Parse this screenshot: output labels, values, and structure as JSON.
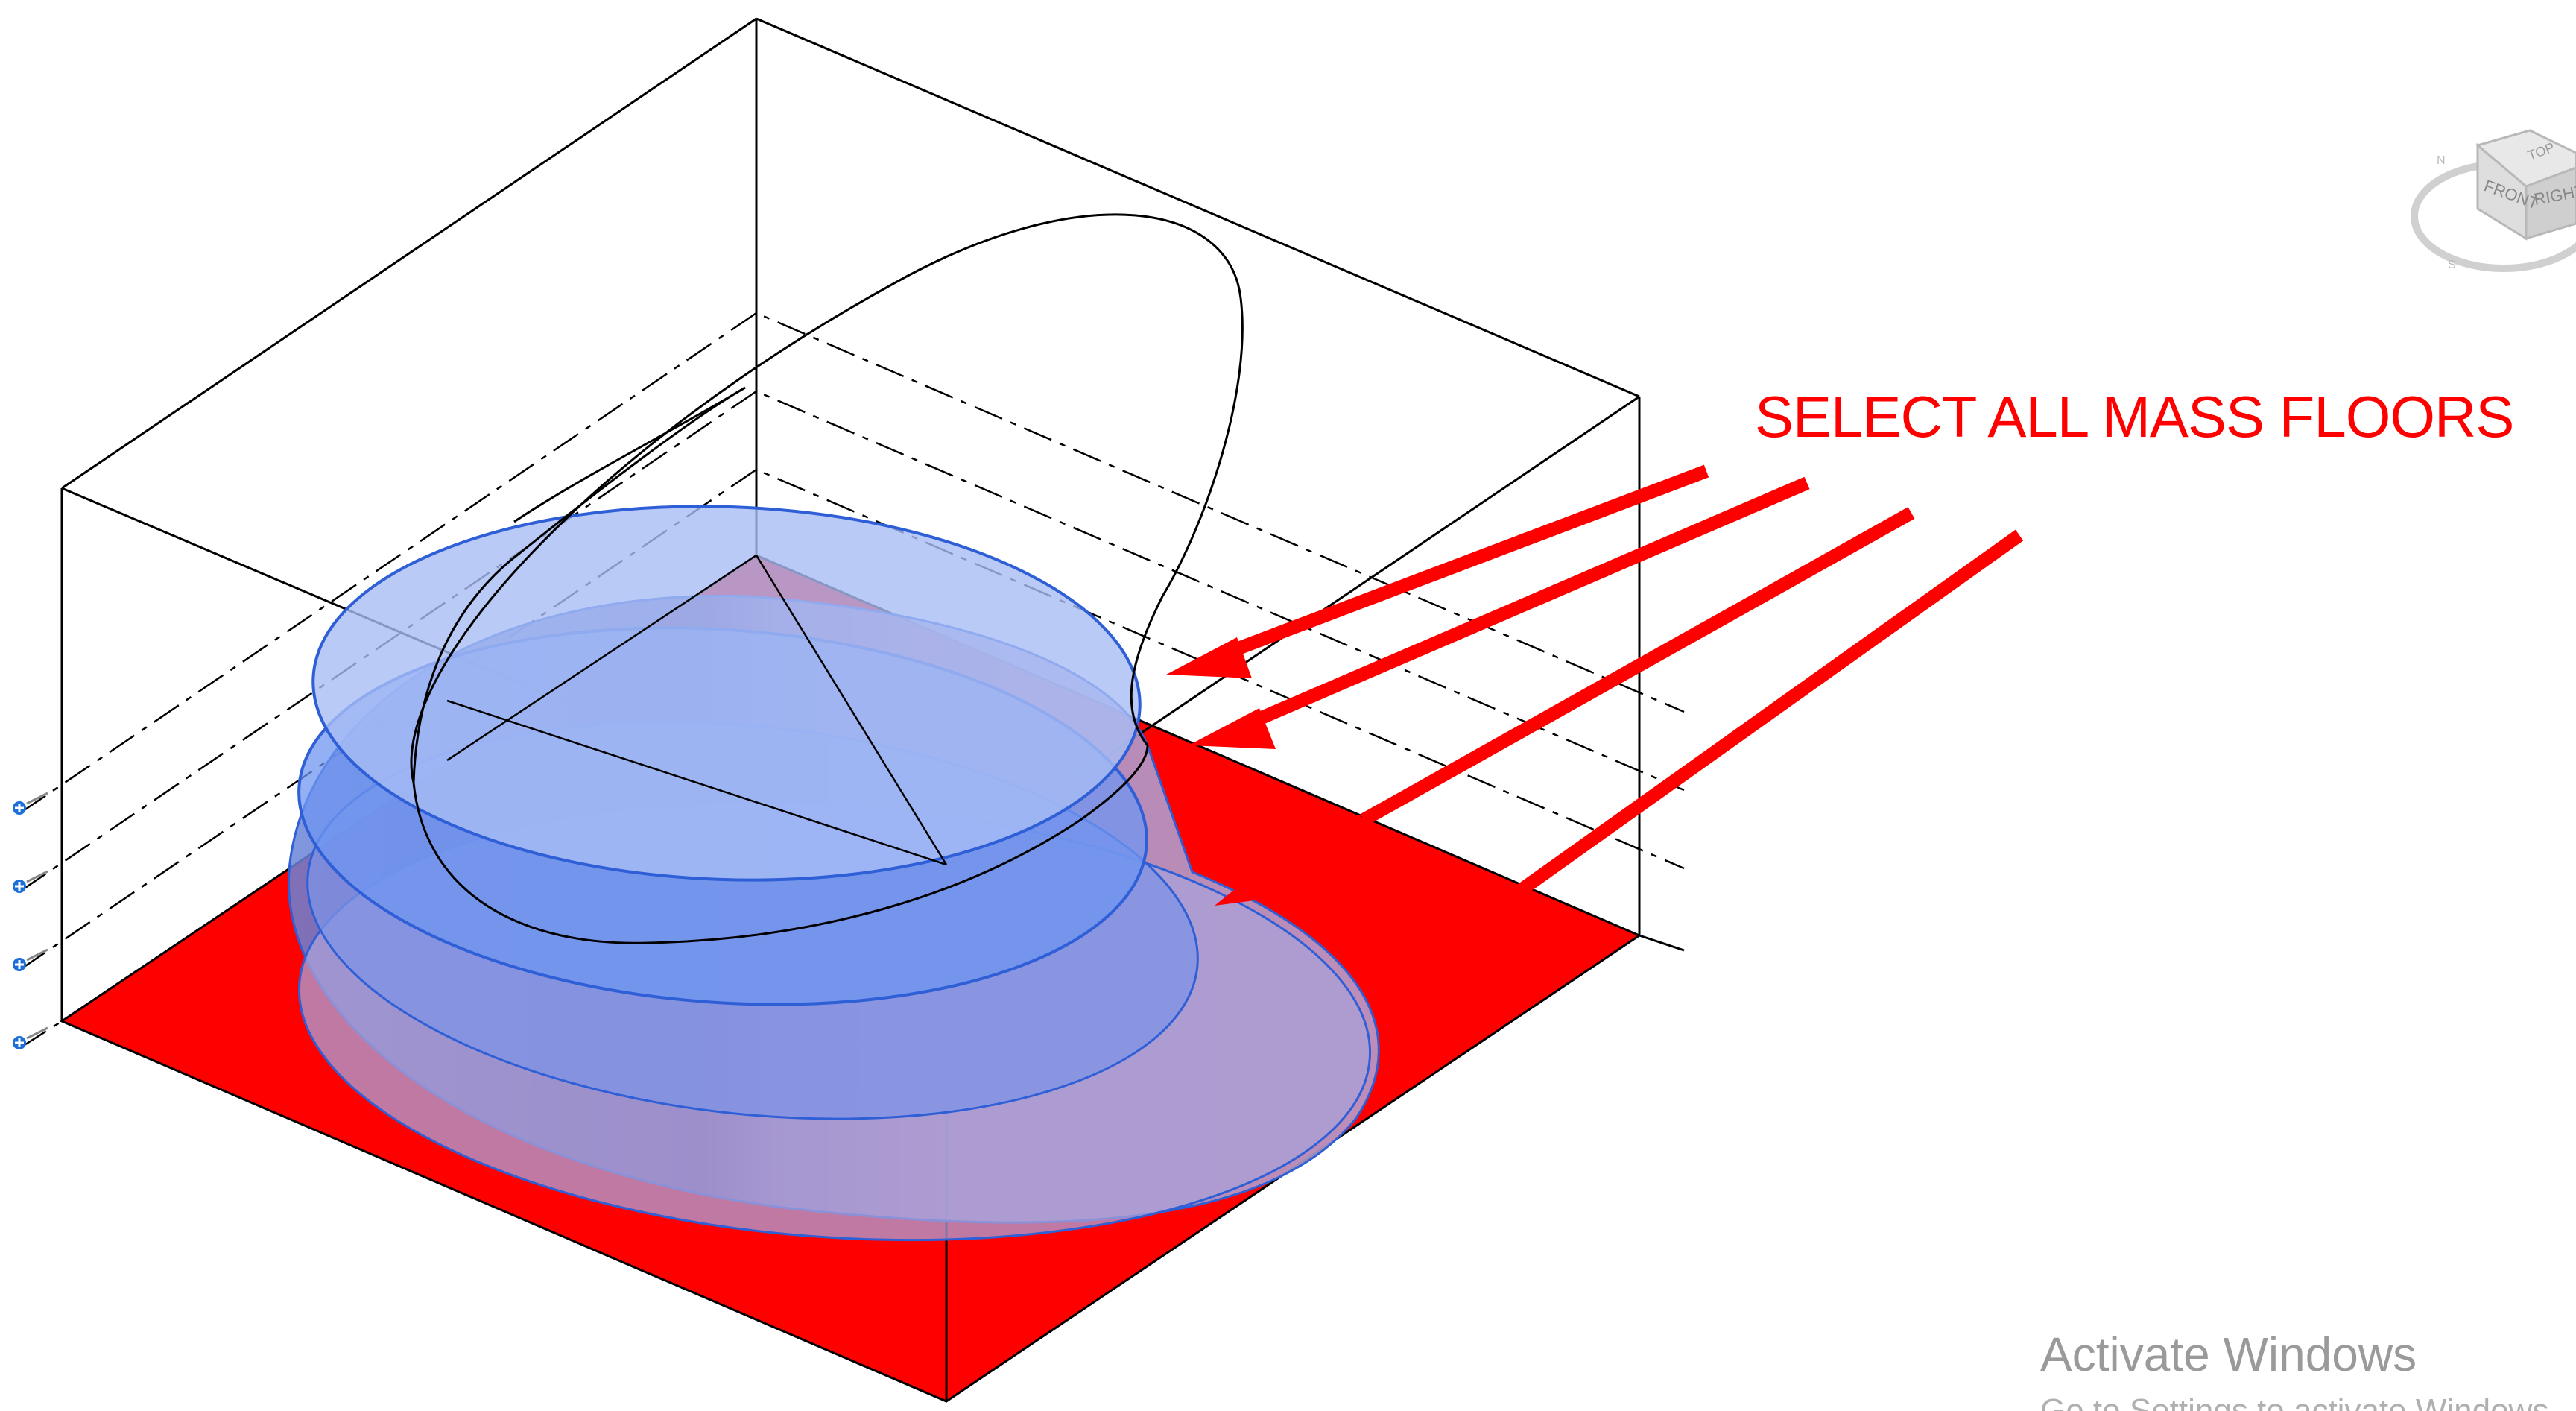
{
  "app": {
    "view": "3D View"
  },
  "annotation": {
    "text": "SELECT ALL MASS FLOORS",
    "color": "#ff0000"
  },
  "colors": {
    "mass_floor_fill": "#ff0000",
    "mass_fill": "#6f96f0",
    "mass_edge": "#2f5fd6",
    "wireframe": "#000000"
  },
  "viewcube": {
    "faces": [
      "TOP",
      "FRONT",
      "RIGHT"
    ],
    "icon": "viewcube-icon"
  },
  "levels": {
    "markers": [
      "level-marker-icon",
      "level-marker-icon",
      "level-marker-icon",
      "level-marker-icon"
    ]
  },
  "watermark": {
    "title": "Activate Windows",
    "subtitle": "Go to Settings to activate Windows."
  }
}
